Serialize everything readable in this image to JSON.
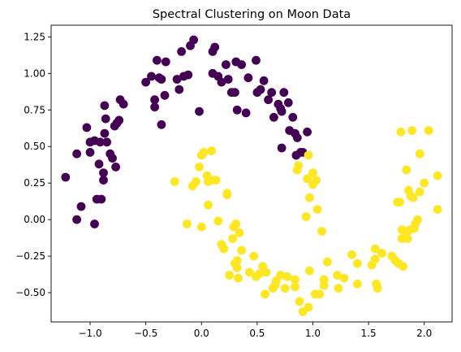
{
  "chart_data": {
    "type": "scatter",
    "title": "Spectral Clustering on Moon Data",
    "xlabel": "",
    "ylabel": "",
    "xlim": [
      -1.35,
      2.25
    ],
    "ylim": [
      -0.7,
      1.33
    ],
    "xticks": [
      -1.0,
      -0.5,
      0.0,
      0.5,
      1.0,
      1.5,
      2.0
    ],
    "xtick_labels": [
      "−1.0",
      "−0.5",
      "0.0",
      "0.5",
      "1.0",
      "1.5",
      "2.0"
    ],
    "yticks": [
      -0.5,
      -0.25,
      0.0,
      0.25,
      0.5,
      0.75,
      1.0,
      1.25
    ],
    "ytick_labels": [
      "−0.50",
      "−0.25",
      "0.00",
      "0.25",
      "0.50",
      "0.75",
      "1.00",
      "1.25"
    ],
    "grid": false,
    "legend": "none",
    "series": [
      {
        "color": "#440154",
        "points": [
          [
            -1.22,
            0.29
          ],
          [
            -1.12,
            0.45
          ],
          [
            -1.12,
            0.0
          ],
          [
            -1.08,
            0.09
          ],
          [
            -1.03,
            0.63
          ],
          [
            -1.0,
            0.53
          ],
          [
            -1.0,
            0.46
          ],
          [
            -0.96,
            0.54
          ],
          [
            -0.96,
            -0.03
          ],
          [
            -0.94,
            0.14
          ],
          [
            -0.92,
            0.38
          ],
          [
            -0.91,
            0.53
          ],
          [
            -0.9,
            0.14
          ],
          [
            -0.88,
            0.32
          ],
          [
            -0.88,
            0.27
          ],
          [
            -0.87,
            0.78
          ],
          [
            -0.87,
            0.59
          ],
          [
            -0.86,
            0.69
          ],
          [
            -0.85,
            0.53
          ],
          [
            -0.82,
            0.45
          ],
          [
            -0.8,
            0.42
          ],
          [
            -0.78,
            0.64
          ],
          [
            -0.77,
            0.36
          ],
          [
            -0.76,
            0.66
          ],
          [
            -0.74,
            0.68
          ],
          [
            -0.73,
            0.82
          ],
          [
            -0.7,
            0.79
          ],
          [
            -0.5,
            0.94
          ],
          [
            -0.45,
            0.98
          ],
          [
            -0.42,
            0.77
          ],
          [
            -0.42,
            0.82
          ],
          [
            -0.4,
            1.09
          ],
          [
            -0.38,
            0.97
          ],
          [
            -0.36,
            0.96
          ],
          [
            -0.36,
            0.65
          ],
          [
            -0.33,
            0.85
          ],
          [
            -0.32,
            1.08
          ],
          [
            -0.22,
            0.96
          ],
          [
            -0.2,
            0.89
          ],
          [
            -0.18,
            1.15
          ],
          [
            -0.16,
            0.98
          ],
          [
            -0.12,
            0.99
          ],
          [
            -0.1,
            1.19
          ],
          [
            -0.07,
            1.23
          ],
          [
            -0.02,
            0.74
          ],
          [
            0.1,
            1.0
          ],
          [
            0.1,
            1.15
          ],
          [
            0.12,
            1.18
          ],
          [
            0.15,
            0.98
          ],
          [
            0.18,
            0.94
          ],
          [
            0.22,
            1.06
          ],
          [
            0.24,
            0.96
          ],
          [
            0.27,
            0.87
          ],
          [
            0.3,
            0.87
          ],
          [
            0.31,
            1.08
          ],
          [
            0.32,
            0.75
          ],
          [
            0.36,
            1.06
          ],
          [
            0.4,
            0.73
          ],
          [
            0.42,
            0.97
          ],
          [
            0.49,
            1.09
          ],
          [
            0.5,
            0.87
          ],
          [
            0.53,
            0.89
          ],
          [
            0.56,
            0.95
          ],
          [
            0.6,
            0.82
          ],
          [
            0.63,
            0.87
          ],
          [
            0.65,
            0.7
          ],
          [
            0.69,
            0.79
          ],
          [
            0.71,
            0.76
          ],
          [
            0.72,
            0.74
          ],
          [
            0.72,
            0.49
          ],
          [
            0.74,
            0.87
          ],
          [
            0.78,
            0.8
          ],
          [
            0.79,
            0.61
          ],
          [
            0.82,
            0.7
          ],
          [
            0.84,
            0.59
          ],
          [
            0.85,
            0.44
          ],
          [
            0.86,
            0.56
          ],
          [
            0.89,
            0.46
          ],
          [
            0.91,
            0.46
          ],
          [
            0.95,
            0.6
          ]
        ]
      },
      {
        "color": "#fde725",
        "points": [
          [
            -0.24,
            0.26
          ],
          [
            -0.13,
            -0.03
          ],
          [
            -0.08,
            0.23
          ],
          [
            -0.05,
            0.26
          ],
          [
            -0.02,
            0.36
          ],
          [
            0.0,
            0.44
          ],
          [
            0.0,
            -0.05
          ],
          [
            0.02,
            0.46
          ],
          [
            0.05,
            0.3
          ],
          [
            0.06,
            0.26
          ],
          [
            0.06,
            0.1
          ],
          [
            0.09,
            0.27
          ],
          [
            0.09,
            0.47
          ],
          [
            0.13,
            0.27
          ],
          [
            0.15,
            -0.01
          ],
          [
            0.18,
            -0.17
          ],
          [
            0.2,
            -0.2
          ],
          [
            0.23,
            0.17
          ],
          [
            0.23,
            0.18
          ],
          [
            0.25,
            -0.38
          ],
          [
            0.28,
            -0.13
          ],
          [
            0.29,
            -0.05
          ],
          [
            0.3,
            -0.3
          ],
          [
            0.31,
            -0.03
          ],
          [
            0.32,
            -0.28
          ],
          [
            0.32,
            -0.33
          ],
          [
            0.33,
            -0.4
          ],
          [
            0.34,
            -0.09
          ],
          [
            0.36,
            -0.21
          ],
          [
            0.43,
            -0.36
          ],
          [
            0.47,
            -0.25
          ],
          [
            0.49,
            -0.39
          ],
          [
            0.52,
            -0.37
          ],
          [
            0.55,
            -0.32
          ],
          [
            0.56,
            -0.35
          ],
          [
            0.57,
            -0.51
          ],
          [
            0.58,
            -0.36
          ],
          [
            0.64,
            -0.47
          ],
          [
            0.66,
            -0.45
          ],
          [
            0.67,
            -0.42
          ],
          [
            0.71,
            -0.38
          ],
          [
            0.75,
            -0.47
          ],
          [
            0.77,
            -0.39
          ],
          [
            0.84,
            -0.46
          ],
          [
            0.84,
            -0.41
          ],
          [
            0.86,
            0.34
          ],
          [
            0.87,
            0.37
          ],
          [
            0.88,
            -0.56
          ],
          [
            0.91,
            -0.63
          ],
          [
            0.94,
            0.02
          ],
          [
            0.95,
            0.28
          ],
          [
            0.96,
            0.44
          ],
          [
            0.96,
            -0.6
          ],
          [
            0.97,
            0.15
          ],
          [
            0.97,
            -0.35
          ],
          [
            1.0,
            0.32
          ],
          [
            1.0,
            0.24
          ],
          [
            1.02,
            -0.51
          ],
          [
            1.03,
            0.27
          ],
          [
            1.04,
            0.07
          ],
          [
            1.06,
            -0.51
          ],
          [
            1.08,
            -0.08
          ],
          [
            1.1,
            -0.45
          ],
          [
            1.1,
            -0.41
          ],
          [
            1.13,
            -0.29
          ],
          [
            1.22,
            -0.38
          ],
          [
            1.23,
            -0.47
          ],
          [
            1.28,
            -0.4
          ],
          [
            1.35,
            -0.24
          ],
          [
            1.4,
            -0.3
          ],
          [
            1.4,
            -0.44
          ],
          [
            1.53,
            -0.31
          ],
          [
            1.56,
            -0.2
          ],
          [
            1.56,
            -0.27
          ],
          [
            1.57,
            -0.44
          ],
          [
            1.58,
            -0.47
          ],
          [
            1.62,
            -0.23
          ],
          [
            1.71,
            -0.25
          ],
          [
            1.74,
            -0.28
          ],
          [
            1.76,
            0.12
          ],
          [
            1.77,
            -0.3
          ],
          [
            1.78,
            0.12
          ],
          [
            1.79,
            0.6
          ],
          [
            1.8,
            -0.07
          ],
          [
            1.8,
            -0.13
          ],
          [
            1.81,
            -0.32
          ],
          [
            1.83,
            -0.1
          ],
          [
            1.84,
            0.34
          ],
          [
            1.85,
            -0.13
          ],
          [
            1.86,
            0.2
          ],
          [
            1.87,
            -0.07
          ],
          [
            1.88,
            0.16
          ],
          [
            1.89,
            0.61
          ],
          [
            1.9,
            0.15
          ],
          [
            1.91,
            -0.06
          ],
          [
            1.92,
            -0.03
          ],
          [
            1.94,
            0.0
          ],
          [
            1.96,
            0.45
          ],
          [
            1.96,
            0.19
          ],
          [
            2.0,
            0.25
          ],
          [
            2.04,
            0.61
          ],
          [
            2.12,
            0.3
          ],
          [
            2.12,
            0.07
          ]
        ]
      }
    ]
  }
}
